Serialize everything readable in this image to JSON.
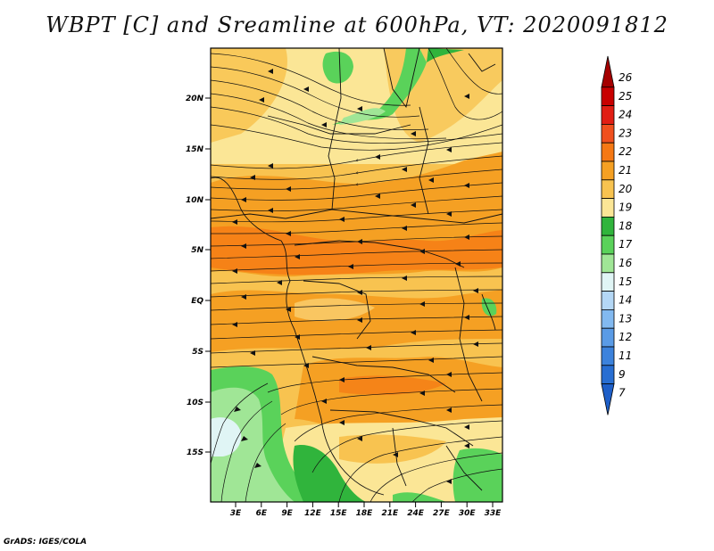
{
  "title": "WBPT [C] and Sreamline at 600hPa, VT: 2020091812",
  "credit": "GrADS: IGES/COLA",
  "lat_labels": [
    "20N",
    "15N",
    "10N",
    "5N",
    "EQ",
    "5S",
    "10S",
    "15S"
  ],
  "lon_labels": [
    "3E",
    "6E",
    "9E",
    "12E",
    "15E",
    "18E",
    "21E",
    "24E",
    "27E",
    "30E",
    "33E"
  ],
  "legend": {
    "levels": [
      "26",
      "25",
      "24",
      "23",
      "22",
      "21",
      "20",
      "19",
      "18",
      "17",
      "16",
      "15",
      "14",
      "13",
      "12",
      "11",
      "9",
      "7"
    ],
    "colors": [
      "#a50000",
      "#c80000",
      "#e11e14",
      "#f0501e",
      "#f57814",
      "#f5a023",
      "#f8c350",
      "#fbe696",
      "#30b43c",
      "#5ad25a",
      "#a0e696",
      "#e0f5f5",
      "#b4d7f5",
      "#82b9f0",
      "#5a9be6",
      "#3c82dc",
      "#286ed2",
      "#1e5fc8"
    ]
  },
  "map": {
    "variable": "WBPT [C]",
    "level": "600hPa",
    "valid_time": "2020091812"
  }
}
